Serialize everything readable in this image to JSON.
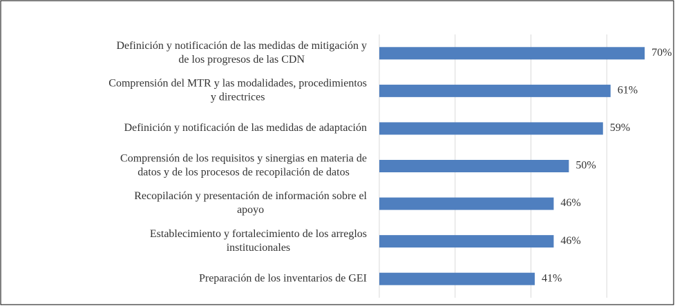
{
  "chart_data": {
    "type": "barh",
    "categories": [
      [
        "Definición y notificación de las medidas de mitigación y",
        "de los progresos de las CDN"
      ],
      [
        "Comprensión del MTR y las modalidades, procedimientos",
        "y directrices"
      ],
      [
        "Definición y notificación de las medidas de adaptación"
      ],
      [
        "Comprensión de los requisitos y sinergias en materia de",
        "datos y de los procesos de recopilación de datos"
      ],
      [
        "Recopilación y presentación de información sobre el",
        "apoyo"
      ],
      [
        "Establecimiento y fortalecimiento de los arreglos",
        "institucionales"
      ],
      [
        "Preparación de los inventarios de GEI"
      ]
    ],
    "values": [
      70,
      61,
      59,
      50,
      46,
      46,
      41
    ],
    "value_labels": [
      "70%",
      "61%",
      "59%",
      "50%",
      "46%",
      "46%",
      "41%"
    ],
    "color": "#4f7fbf",
    "xlim": [
      0,
      80
    ],
    "xticks": [
      0,
      20,
      40,
      60
    ],
    "grid": true
  }
}
